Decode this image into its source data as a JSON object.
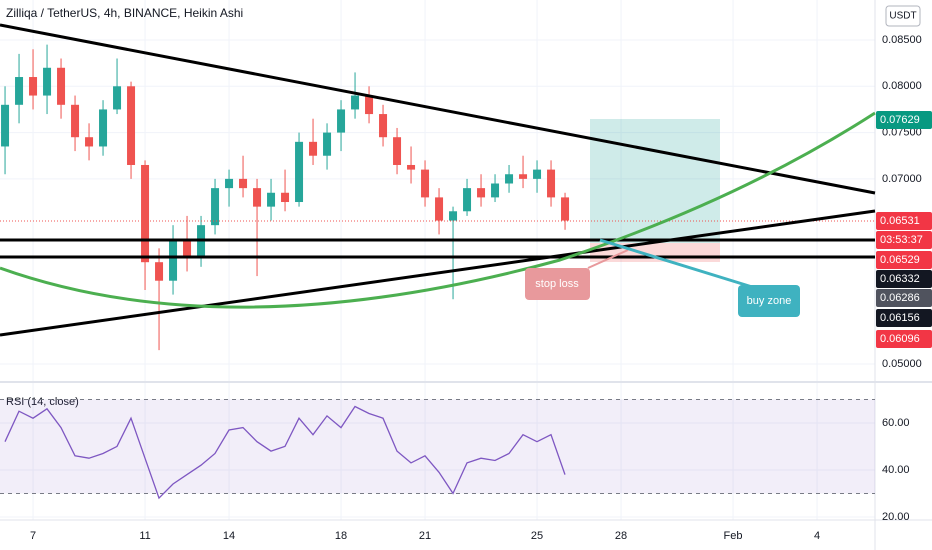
{
  "header": {
    "symbol": "Zilliqa / TetherUS, 4h, BINANCE, Heikin Ashi",
    "currency": "USDT"
  },
  "chart_data": [
    {
      "type": "candlestick",
      "x": [
        6,
        6.5,
        7,
        7.5,
        8,
        8.5,
        9,
        9.5,
        10,
        10.5,
        11,
        11.5,
        12,
        12.5,
        13,
        13.5,
        14,
        14.5,
        15,
        15.5,
        16,
        16.5,
        17,
        17.5,
        18,
        18.5,
        19,
        19.5,
        20,
        20.5,
        21,
        21.5,
        22,
        22.5,
        23,
        23.5,
        24,
        24.5,
        25,
        25.5,
        26
      ],
      "open": [
        0.0735,
        0.078,
        0.081,
        0.079,
        0.082,
        0.078,
        0.0745,
        0.0735,
        0.0775,
        0.08,
        0.0715,
        0.061,
        0.059,
        0.0635,
        0.0615,
        0.065,
        0.069,
        0.07,
        0.069,
        0.067,
        0.0685,
        0.0675,
        0.074,
        0.0725,
        0.075,
        0.0775,
        0.079,
        0.077,
        0.0745,
        0.0715,
        0.071,
        0.068,
        0.0655,
        0.0665,
        0.069,
        0.068,
        0.0695,
        0.0705,
        0.07,
        0.071,
        0.068
      ],
      "high": [
        0.08,
        0.0835,
        0.084,
        0.0845,
        0.083,
        0.079,
        0.076,
        0.0785,
        0.083,
        0.0805,
        0.072,
        0.0625,
        0.065,
        0.066,
        0.066,
        0.07,
        0.071,
        0.0725,
        0.07,
        0.07,
        0.071,
        0.075,
        0.0765,
        0.076,
        0.0785,
        0.0815,
        0.08,
        0.078,
        0.0755,
        0.0735,
        0.072,
        0.069,
        0.067,
        0.07,
        0.0705,
        0.0705,
        0.0715,
        0.0725,
        0.072,
        0.072,
        0.0685
      ],
      "low": [
        0.0705,
        0.076,
        0.0775,
        0.077,
        0.0765,
        0.073,
        0.072,
        0.0725,
        0.077,
        0.07,
        0.058,
        0.0515,
        0.0575,
        0.06,
        0.0605,
        0.064,
        0.067,
        0.068,
        0.0595,
        0.0655,
        0.0665,
        0.067,
        0.0715,
        0.071,
        0.073,
        0.0765,
        0.076,
        0.0735,
        0.0705,
        0.0695,
        0.067,
        0.064,
        0.057,
        0.066,
        0.067,
        0.0675,
        0.0685,
        0.069,
        0.0685,
        0.067,
        0.0645
      ],
      "close": [
        0.078,
        0.081,
        0.079,
        0.082,
        0.078,
        0.0745,
        0.0735,
        0.0775,
        0.08,
        0.0715,
        0.061,
        0.059,
        0.0635,
        0.0615,
        0.065,
        0.069,
        0.07,
        0.069,
        0.067,
        0.0685,
        0.0675,
        0.074,
        0.0725,
        0.075,
        0.0775,
        0.079,
        0.077,
        0.0745,
        0.0715,
        0.071,
        0.068,
        0.0655,
        0.0665,
        0.069,
        0.068,
        0.0695,
        0.0705,
        0.07,
        0.071,
        0.068,
        0.0655
      ],
      "up_color": "#26a69a",
      "down_color": "#ef5350",
      "xlim": [
        5.82,
        37.07
      ],
      "xticks": [
        7,
        11,
        14,
        18,
        21,
        25,
        28,
        {
          "value": 32,
          "label": "Feb"
        },
        {
          "value": 35,
          "label": "4"
        }
      ],
      "ylim": [
        0.04806,
        0.08932
      ],
      "yticks": [
        {
          "value": 0.05,
          "label": "0.05000"
        },
        {
          "value": 0.07,
          "label": "0.07000"
        },
        {
          "value": 0.075,
          "label": "0.07500"
        },
        {
          "value": 0.08,
          "label": "0.08000"
        },
        {
          "value": 0.085,
          "label": "0.08500"
        }
      ],
      "badges": [
        {
          "label": "0.07629",
          "color": "#089981"
        },
        {
          "label": "0.06531",
          "color": "#f23645"
        },
        {
          "label": "03:53:37",
          "color": "#f23645"
        },
        {
          "label": "0.06529",
          "color": "#f23645"
        },
        {
          "label": "0.06332",
          "color": "#131722"
        },
        {
          "label": "0.06286",
          "color": "#50535e"
        },
        {
          "label": "0.06156",
          "color": "#131722"
        },
        {
          "label": "0.06096",
          "color": "#f23645"
        }
      ]
    },
    {
      "type": "line",
      "title": "RSI (14, close)",
      "x": [
        6,
        6.5,
        7,
        7.5,
        8,
        8.5,
        9,
        9.5,
        10,
        10.5,
        11,
        11.5,
        12,
        12.5,
        13,
        13.5,
        14,
        14.5,
        15,
        15.5,
        16,
        16.5,
        17,
        17.5,
        18,
        18.5,
        19,
        19.5,
        20,
        20.5,
        21,
        21.5,
        22,
        22.5,
        23,
        23.5,
        24,
        24.5,
        25,
        25.5,
        26
      ],
      "values": [
        52,
        65,
        62,
        66,
        58,
        46,
        45,
        47,
        50,
        62,
        45,
        28,
        34,
        38,
        42,
        47,
        57,
        58,
        52,
        48,
        50,
        62,
        55,
        63,
        58,
        67,
        64,
        62,
        48,
        43,
        46,
        39,
        30,
        43,
        45,
        44,
        47,
        55,
        52,
        55,
        38
      ],
      "color": "#7e57c2",
      "ylim": [
        18.7,
        77
      ],
      "yticks": [
        {
          "value": 20,
          "label": "20.00"
        },
        {
          "value": 40,
          "label": "40.00"
        },
        {
          "value": 60,
          "label": "60.00"
        }
      ],
      "bands": [
        30,
        70
      ]
    }
  ],
  "annotations": {
    "stop": "stop loss",
    "buy": "buy zone"
  }
}
